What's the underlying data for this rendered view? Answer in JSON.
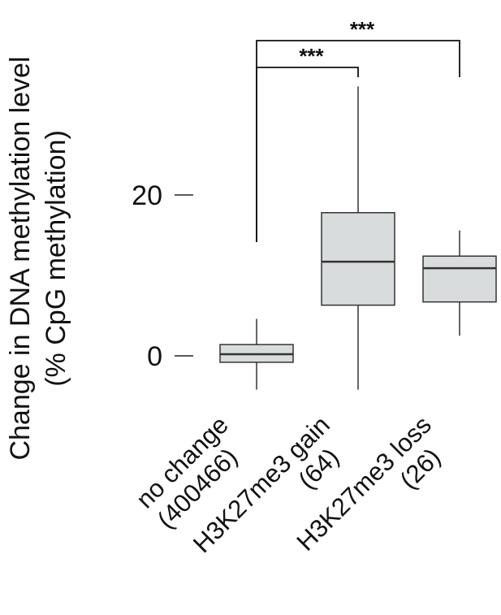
{
  "chart_data": {
    "type": "box",
    "ylabel_lines": [
      "Change in DNA methylation level",
      "(% CpG methylation)"
    ],
    "yticks": [
      0,
      20
    ],
    "ylim": [
      -6,
      34
    ],
    "grid": false,
    "legend": "none",
    "box_color": "#d9dcdc",
    "line_color": "#333333",
    "categories": [
      {
        "lines": [
          "no change",
          "(400466)"
        ]
      },
      {
        "lines": [
          "H3K27me3 gain",
          "(64)"
        ]
      },
      {
        "lines": [
          "H3K27me3 loss",
          "(26)"
        ]
      }
    ],
    "boxes": [
      {
        "whisker_low": -4.2,
        "q1": -0.8,
        "median": 0.2,
        "q3": 1.4,
        "whisker_high": 4.6
      },
      {
        "whisker_low": -4.2,
        "q1": 6.3,
        "median": 11.7,
        "q3": 17.8,
        "whisker_high": 33.5
      },
      {
        "whisker_low": 2.5,
        "q1": 6.7,
        "median": 10.9,
        "q3": 12.4,
        "whisker_high": 15.6
      }
    ],
    "significance": [
      {
        "from": 0,
        "to": 1,
        "label": "***"
      },
      {
        "from": 0,
        "to": 2,
        "label": "***"
      }
    ]
  }
}
